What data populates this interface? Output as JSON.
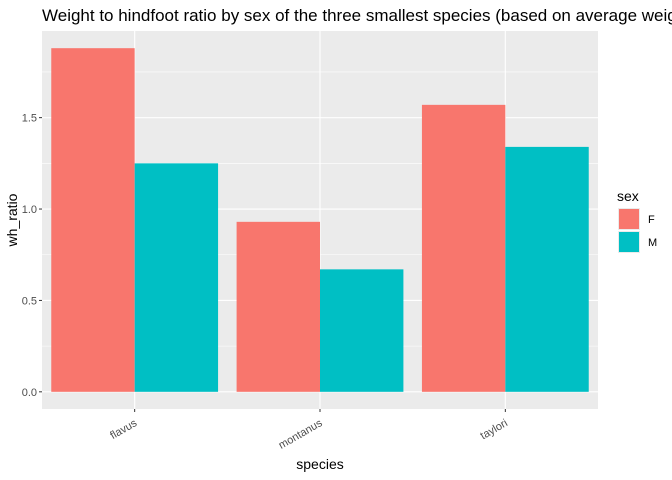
{
  "chart_data": {
    "type": "bar",
    "title": "Weight to hindfoot ratio by sex of the three smallest species (based on average weight)",
    "xlabel": "species",
    "ylabel": "wh_ratio",
    "categories": [
      "flavus",
      "montanus",
      "taylori"
    ],
    "series": [
      {
        "name": "F",
        "values": [
          1.88,
          0.93,
          1.57
        ],
        "color": "#F8766D"
      },
      {
        "name": "M",
        "values": [
          1.25,
          0.67,
          1.34
        ],
        "color": "#00BFC4"
      }
    ],
    "yticks": [
      0.0,
      0.5,
      1.0,
      1.5
    ],
    "ytick_labels": [
      "0.0",
      "0.5",
      "1.0",
      "1.5"
    ],
    "ylim": [
      -0.094,
      1.974
    ],
    "legend": {
      "title": "sex",
      "position": "right"
    },
    "grid": true,
    "panel_background": "#EBEBEB",
    "grid_color": "#FFFFFF"
  }
}
